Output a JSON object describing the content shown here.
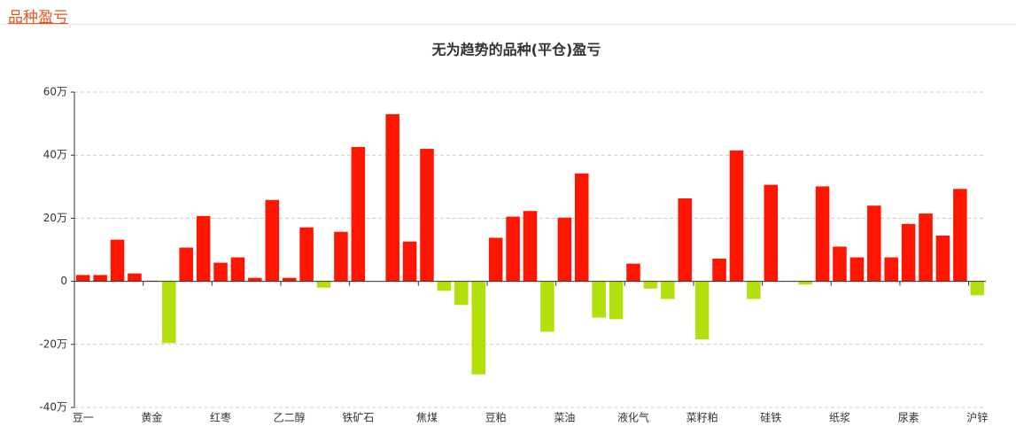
{
  "header": {
    "title": "品种盈亏"
  },
  "chart_data": {
    "type": "bar",
    "title": "无为趋势的品种(平仓)盈亏",
    "categories": [
      "豆一",
      null,
      null,
      null,
      "黄金",
      null,
      null,
      null,
      "红枣",
      null,
      null,
      null,
      "乙二醇",
      null,
      null,
      null,
      "铁矿石",
      null,
      null,
      null,
      "焦煤",
      null,
      null,
      null,
      "豆粕",
      null,
      null,
      null,
      "菜油",
      null,
      null,
      null,
      "液化气",
      null,
      null,
      null,
      "菜籽粕",
      null,
      null,
      null,
      "硅铁",
      null,
      null,
      null,
      "纸浆",
      null,
      null,
      null,
      "尿素",
      null,
      null,
      null,
      "沪锌"
    ],
    "values": [
      2.0,
      2.0,
      13.2,
      2.5,
      0.2,
      -19.6,
      10.7,
      20.7,
      5.9,
      7.6,
      1.1,
      25.8,
      1.1,
      17.1,
      -2.0,
      15.7,
      42.6,
      0,
      53.0,
      12.6,
      42.0,
      -3.0,
      -7.5,
      -29.5,
      13.8,
      20.5,
      22.3,
      -16.0,
      20.2,
      34.2,
      -11.5,
      -12.0,
      5.6,
      -2.3,
      -5.6,
      26.3,
      -18.4,
      7.2,
      41.5,
      -5.6,
      30.6,
      0.1,
      -1.0,
      30.1,
      11.0,
      7.6,
      24.0,
      7.6,
      18.2,
      21.5,
      14.5,
      29.3,
      -4.4
    ],
    "positive_color": "#ff1500",
    "negative_color": "#b3e00a",
    "ylim": [
      -40,
      60
    ],
    "yticks": [
      {
        "value": -40,
        "label": "-40万"
      },
      {
        "value": -20,
        "label": "-20万"
      },
      0,
      {
        "value": 20,
        "label": "20万"
      },
      {
        "value": 40,
        "label": "40万"
      },
      {
        "value": 60,
        "label": "60万"
      }
    ],
    "grid": true
  }
}
